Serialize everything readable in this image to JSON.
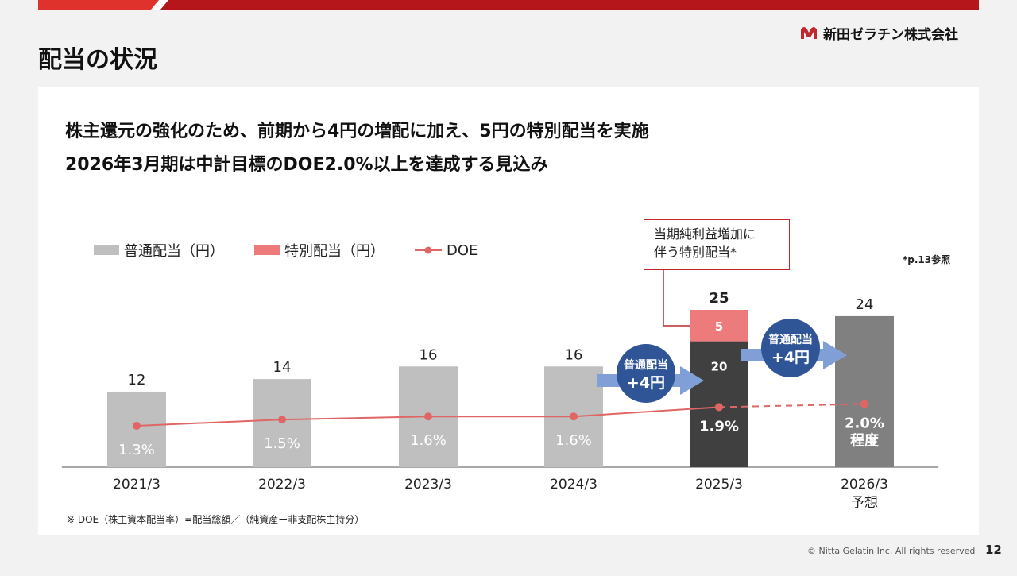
{
  "header": {
    "title": "配当の状況",
    "company": "新田ゼラチン株式会社",
    "colors": {
      "brand_red": "#c0282d",
      "bar_gray": "#bfbfbf",
      "bar_dark": "#404040",
      "bar_forecast": "#808080",
      "special_red": "#ee7b7b",
      "arrow_blue": "#7f9fd6",
      "badge_blue": "#2f5597"
    }
  },
  "headline": {
    "line1": "株主還元の強化のため、前期から4円の増配に加え、5円の特別配当を実施",
    "line2": "2026年3月期は中計目標のDOE2.0%以上を達成する見込み"
  },
  "callout": {
    "line1": "当期純利益増加に",
    "line2": "伴う特別配当*"
  },
  "reference_note": "*p.13参照",
  "badges": [
    {
      "line1": "普通配当",
      "line2": "+4円"
    },
    {
      "line1": "普通配当",
      "line2": "+4円"
    }
  ],
  "footnote": "※ DOE（株主資本配当率）=配当総額／（純資産ー非支配株主持分）",
  "footer": {
    "copyright": "© Nitta Gelatin Inc. All rights reserved",
    "page": "12"
  },
  "chart_data": {
    "type": "bar",
    "categories": [
      "2021/3",
      "2022/3",
      "2023/3",
      "2024/3",
      "2025/3",
      "2026/3"
    ],
    "category_sublabels": [
      "",
      "",
      "",
      "",
      "",
      "予想"
    ],
    "series": [
      {
        "name": "普通配当（円）",
        "values": [
          12,
          14,
          16,
          16,
          20,
          24
        ]
      },
      {
        "name": "特別配当（円）",
        "values": [
          0,
          0,
          0,
          0,
          5,
          0
        ]
      },
      {
        "name": "DOE",
        "values": [
          1.3,
          1.5,
          1.6,
          1.6,
          1.9,
          2.0
        ]
      }
    ],
    "total_labels": [
      "12",
      "14",
      "16",
      "16",
      "25",
      "24"
    ],
    "segment_labels": {
      "regular_2025": "20",
      "special_2025": "5"
    },
    "doe_labels": [
      "1.3%",
      "1.5%",
      "1.6%",
      "1.6%",
      "1.9%",
      "2.0%"
    ],
    "doe_label_suffix_last": "程度",
    "legend": [
      "普通配当（円）",
      "特別配当（円）",
      "DOE"
    ],
    "legend_position": "top-left",
    "forecast_index": 5,
    "dashed_last_segment": true
  }
}
